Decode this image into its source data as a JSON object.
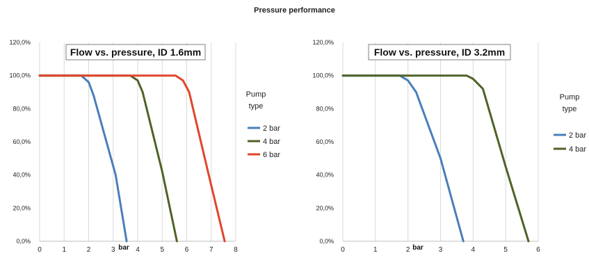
{
  "page_title": "Pressure performance",
  "chart_data": [
    {
      "type": "line",
      "title": "Flow vs. pressure, ID 1.6mm",
      "xlabel": "bar",
      "ylabel": "",
      "xlim": [
        0,
        8
      ],
      "ylim": [
        0,
        120
      ],
      "x_ticks": [
        "0",
        "1",
        "2",
        "3",
        "4",
        "5",
        "6",
        "7",
        "8"
      ],
      "y_ticks": [
        "0,0%",
        "20,0%",
        "40,0%",
        "60,0%",
        "80,0%",
        "100,0%",
        "120,0%"
      ],
      "grid": "vertical",
      "legend_title": "Pump type",
      "legend_position": "right",
      "series": [
        {
          "name": "2 bar",
          "color": "#4a7ebb",
          "x": [
            0,
            1.7,
            2.0,
            2.2,
            3.1,
            3.55
          ],
          "y": [
            100,
            100,
            96,
            88,
            40,
            0
          ]
        },
        {
          "name": "4 bar",
          "color": "#4f6228",
          "x": [
            0,
            3.7,
            4.0,
            4.2,
            5.0,
            5.6
          ],
          "y": [
            100,
            100,
            97,
            90,
            42,
            0
          ]
        },
        {
          "name": "6 bar",
          "color": "#e0462b",
          "x": [
            0,
            5.55,
            5.85,
            6.1,
            6.9,
            7.55
          ],
          "y": [
            100,
            100,
            97,
            90,
            40,
            0
          ]
        }
      ]
    },
    {
      "type": "line",
      "title": "Flow vs. pressure, ID 3.2mm",
      "xlabel": "bar",
      "ylabel": "",
      "xlim": [
        0,
        6
      ],
      "ylim": [
        0,
        120
      ],
      "x_ticks": [
        "0",
        "1",
        "2",
        "3",
        "4",
        "5",
        "6"
      ],
      "y_ticks": [
        "0,0%",
        "20,0%",
        "40,0%",
        "60,0%",
        "80,0%",
        "100,0%",
        "120,0%"
      ],
      "grid": "vertical",
      "legend_title": "Pump type",
      "legend_position": "right",
      "series": [
        {
          "name": "2 bar",
          "color": "#4a7ebb",
          "x": [
            0,
            1.75,
            2.0,
            2.25,
            3.0,
            3.7
          ],
          "y": [
            100,
            100,
            97,
            90,
            50,
            0
          ]
        },
        {
          "name": "4 bar",
          "color": "#4f6228",
          "x": [
            0,
            3.8,
            4.0,
            4.3,
            5.0,
            5.7
          ],
          "y": [
            100,
            100,
            98,
            92,
            45,
            0
          ]
        }
      ]
    }
  ]
}
